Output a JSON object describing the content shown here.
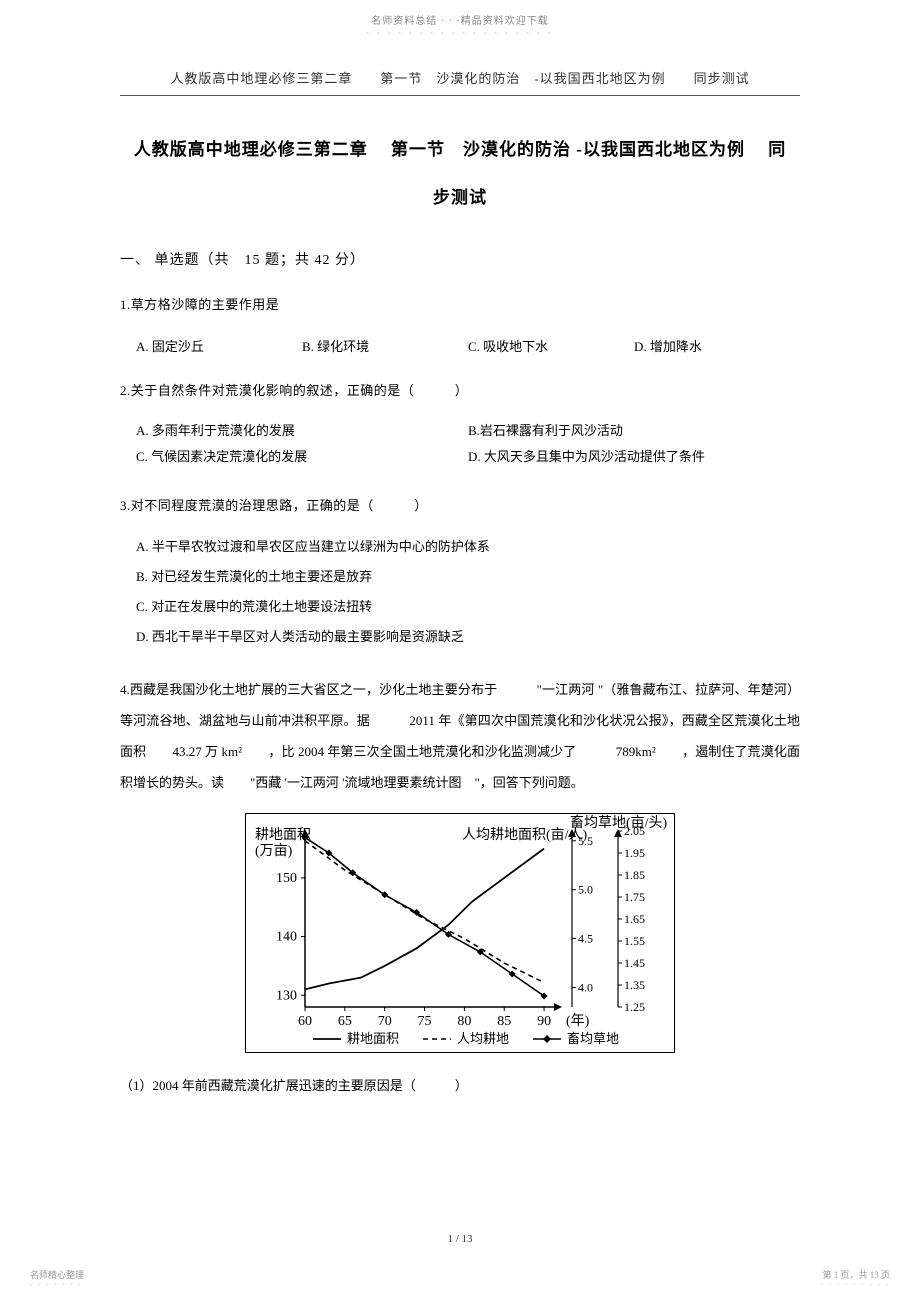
{
  "topHeader": {
    "text": "名师资料总结 · · ·精品资料欢迎下载",
    "dots": "· · · · · · · · · · · · · · · · · ·"
  },
  "subHeader": "人教版高中地理必修三第二章　　第一节　沙漠化的防治　-以我国西北地区为例　　同步测试",
  "mainTitle": {
    "line1": "人教版高中地理必修三第二章　 第一节　沙漠化的防治 -以我国西北地区为例　 同",
    "line2": "步测试"
  },
  "sectionHead": "一、 单选题（共　15 题；共 42 分）",
  "q1": {
    "stem": "1.草方格沙障的主要作用是",
    "opts": [
      "A. 固定沙丘",
      "B. 绿化环境",
      "C. 吸收地下水",
      "D. 增加降水"
    ]
  },
  "q2": {
    "stem": "2.关于自然条件对荒漠化影响的叙述，正确的是（　　　）",
    "optsL": [
      "A. 多雨年利于荒漠化的发展",
      "C. 气候因素决定荒漠化的发展"
    ],
    "optsR": [
      "B.岩石裸露有利于风沙活动",
      "D. 大风天多且集中为风沙活动提供了条件"
    ]
  },
  "q3": {
    "stem": "3.对不同程度荒漠的治理思路，正确的是（　　　）",
    "opts": [
      "A. 半干旱农牧过渡和旱农区应当建立以绿洲为中心的防护体系",
      "B. 对已经发生荒漠化的土地主要还是放弃",
      "C. 对正在发展中的荒漠化土地要设法扭转",
      "D. 西北干旱半干旱区对人类活动的最主要影响是资源缺乏"
    ]
  },
  "q4": {
    "para": "4.西藏是我国沙化土地扩展的三大省区之一，沙化土地主要分布于　　　\"一江两河 \"（雅鲁藏布江、拉萨河、年楚河）等河流谷地、湖盆地与山前冲洪积平原。据　　　2011 年《第四次中国荒漠化和沙化状况公报》，西藏全区荒漠化土地面积　　43.27 万 km²　　，比 2004 年第三次全国土地荒漠化和沙化监测减少了　　　789km²　　，遏制住了荒漠化面积增长的势头。读　　\"西藏 '一江两河 '流域地理要素统计图　\"，回答下列问题。",
    "sub1": "（1）2004 年前西藏荒漠化扩展迅速的主要原因是（　　　）"
  },
  "chart": {
    "type": "multi-axis-line",
    "background_color": "#ffffff",
    "axis_color": "#000000",
    "grid_color": "#000000",
    "font_size": 14,
    "x": {
      "min": 60,
      "max": 92,
      "ticks": [
        60,
        65,
        70,
        75,
        80,
        85,
        90
      ],
      "label_suffix": "(年)"
    },
    "yLeft": {
      "label": "耕地面积\n(万亩)",
      "min": 128,
      "max": 158,
      "ticks": [
        130,
        140,
        150
      ]
    },
    "yR1": {
      "label": "人均耕地面积(亩/人)",
      "min": 3.8,
      "max": 5.6,
      "ticks": [
        4.0,
        4.5,
        5.0,
        5.5
      ]
    },
    "yR2": {
      "label": "畜均草地(亩/头)",
      "min": 1.25,
      "max": 2.05,
      "ticks": [
        1.25,
        1.35,
        1.45,
        1.55,
        1.65,
        1.75,
        1.85,
        1.95,
        2.05
      ]
    },
    "series": {
      "land": {
        "legend": "耕地面积",
        "color": "#000000",
        "style": "solid",
        "marker": "none",
        "points": [
          [
            60,
            131
          ],
          [
            63,
            132
          ],
          [
            67,
            133
          ],
          [
            70,
            135
          ],
          [
            74,
            138
          ],
          [
            78,
            142
          ],
          [
            81,
            146
          ],
          [
            84,
            149
          ],
          [
            87,
            152
          ],
          [
            90,
            155
          ]
        ]
      },
      "perCapita": {
        "legend": "人均耕地",
        "color": "#000000",
        "style": "dash",
        "marker": "none",
        "axis": "yR1",
        "points": [
          [
            60,
            5.5
          ],
          [
            65,
            5.2
          ],
          [
            70,
            4.95
          ],
          [
            75,
            4.7
          ],
          [
            80,
            4.5
          ],
          [
            85,
            4.25
          ],
          [
            90,
            4.05
          ]
        ]
      },
      "pasture": {
        "legend": "畜均草地",
        "color": "#000000",
        "style": "solid",
        "marker": "diamond",
        "axis": "yR2",
        "points": [
          [
            60,
            2.02
          ],
          [
            63,
            1.95
          ],
          [
            66,
            1.86
          ],
          [
            70,
            1.76
          ],
          [
            74,
            1.68
          ],
          [
            78,
            1.58
          ],
          [
            82,
            1.5
          ],
          [
            86,
            1.4
          ],
          [
            90,
            1.3
          ]
        ]
      }
    }
  },
  "pageNum": "1 / 13",
  "footerLeft": {
    "text": "名师精心整理",
    "dots": "· · · · · · ·"
  },
  "footerRight": {
    "text": "第 1 页，共 13 页",
    "dots": "· · · · · · · · ·"
  }
}
